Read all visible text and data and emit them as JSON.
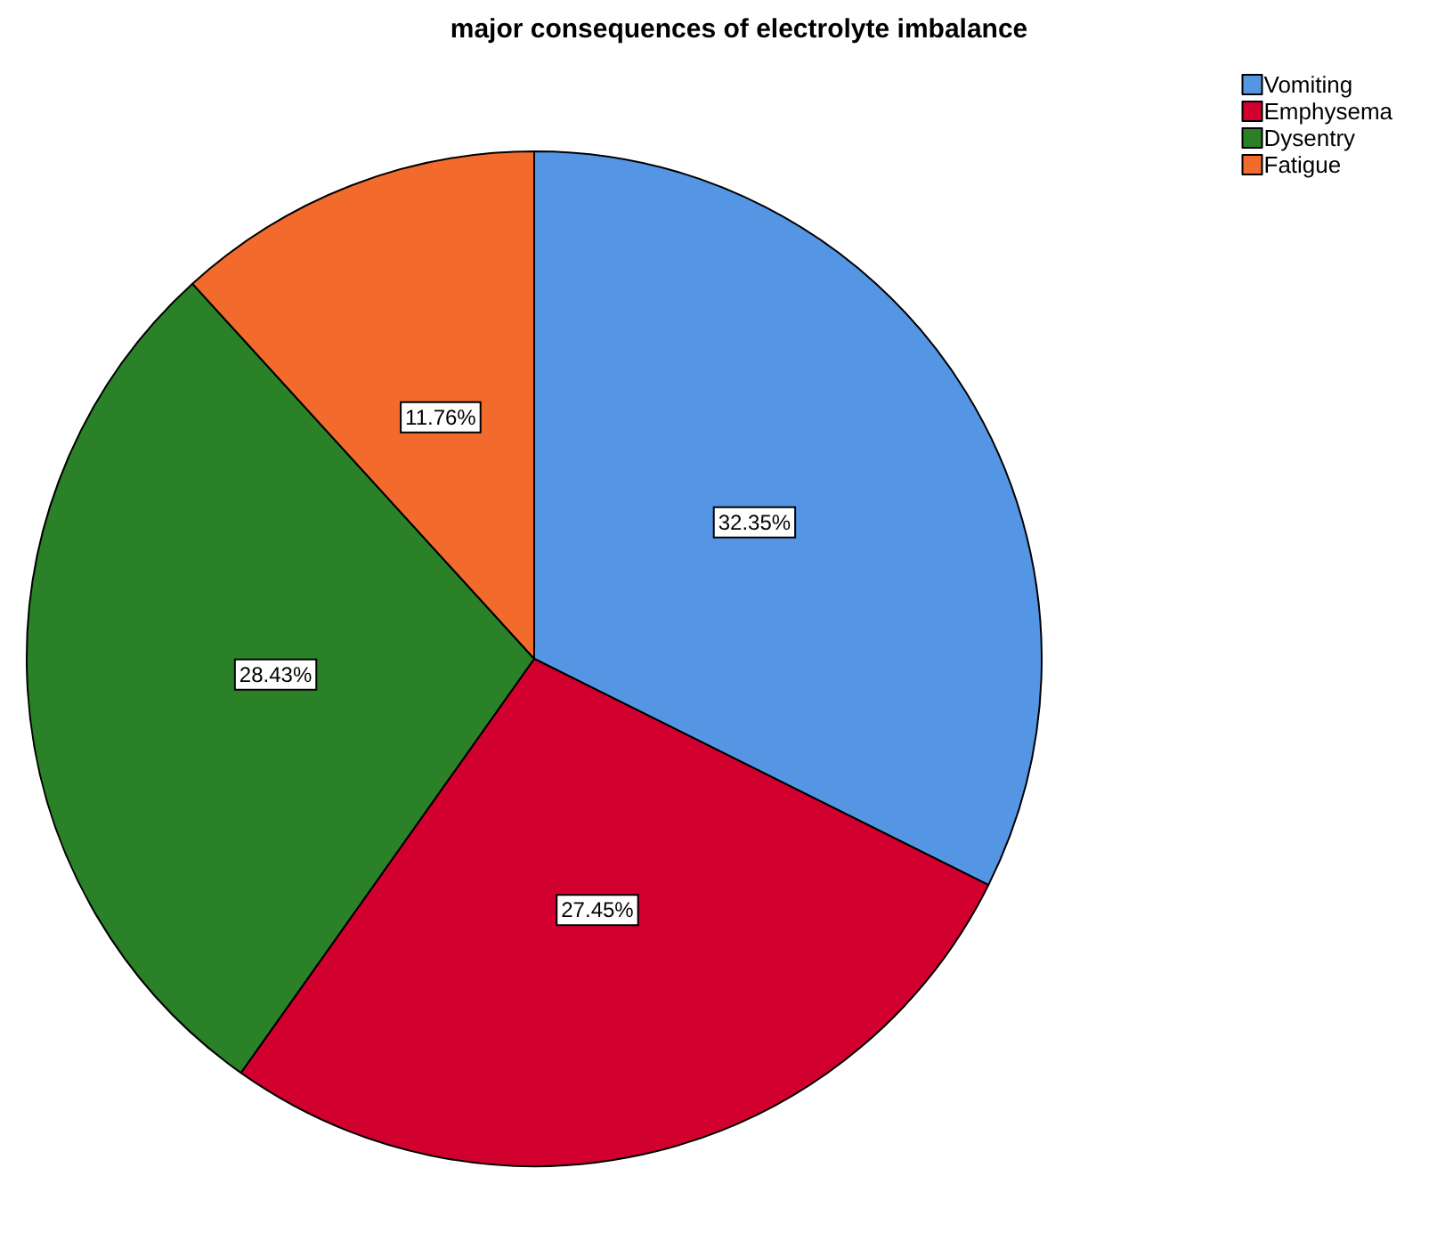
{
  "chart_data": {
    "type": "pie",
    "title": "major consequences of electrolyte imbalance",
    "categories": [
      "Vomiting",
      "Emphysema",
      "Dysentry",
      "Fatigue"
    ],
    "values": [
      32.35,
      27.45,
      28.43,
      11.76
    ],
    "colors": [
      "#5596e4",
      "#d2002e",
      "#2a8128",
      "#f26b2d"
    ],
    "value_labels": [
      "32.35%",
      "27.45%",
      "28.43%",
      "11.76%"
    ],
    "legend": "top right"
  }
}
